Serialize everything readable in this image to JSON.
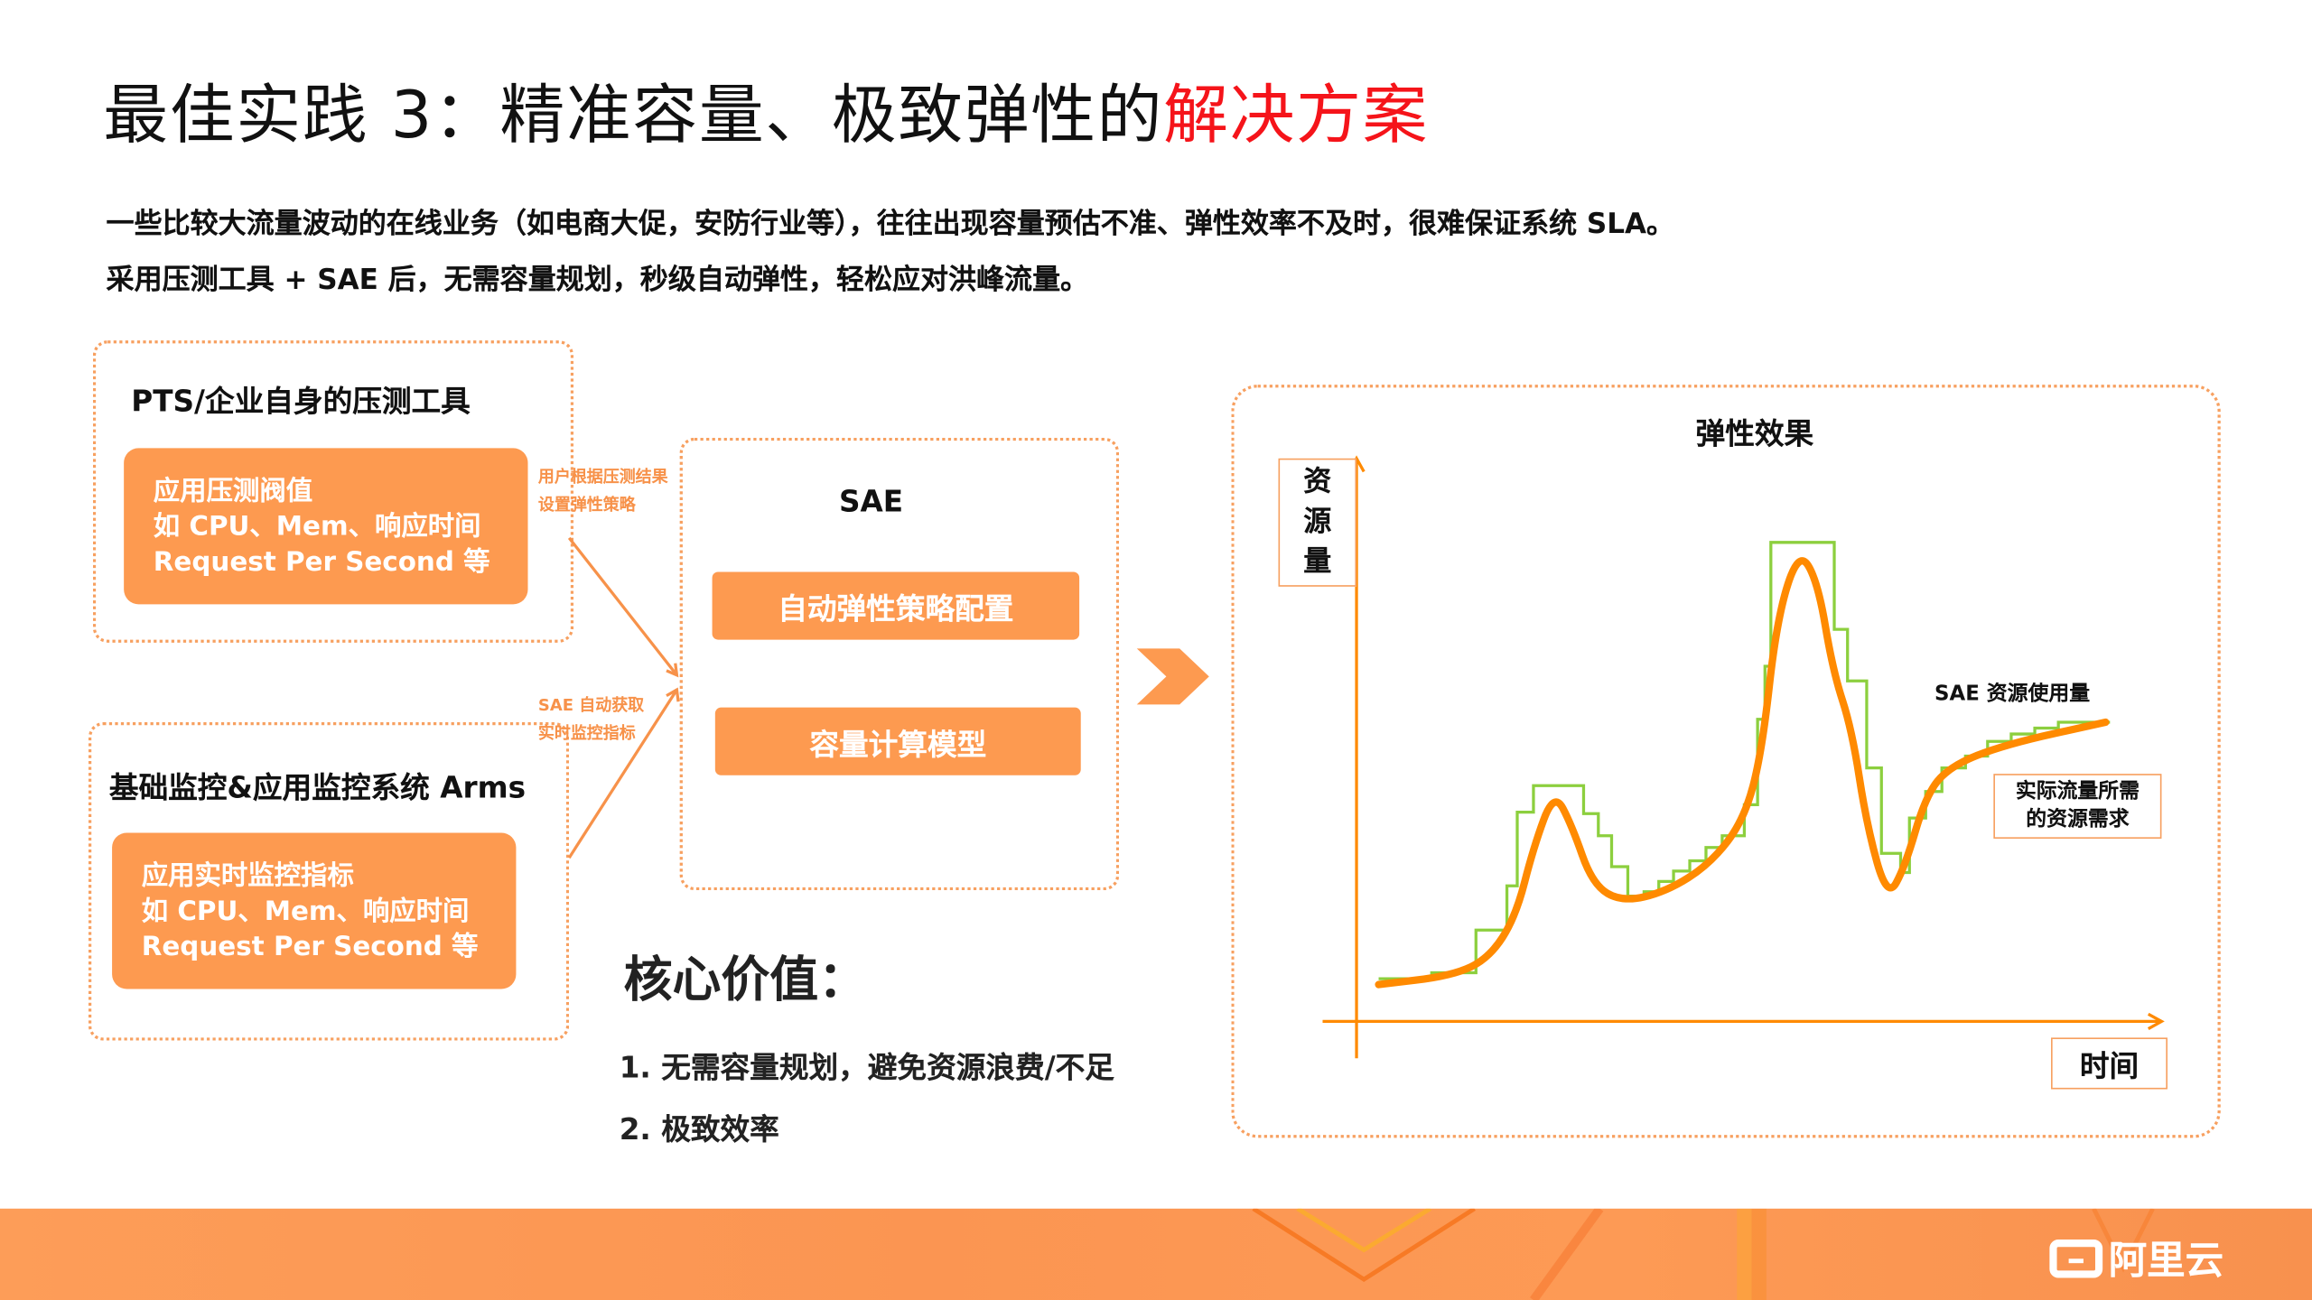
{
  "header": {
    "title_main": "最佳实践 3：精准容量、极致弹性的",
    "title_highlight": "解决方案",
    "highlight_color": "#f5141a"
  },
  "intro": {
    "line1": "一些比较大流量波动的在线业务（如电商大促，安防行业等），往往出现容量预估不准、弹性效率不及时，很难保证系统 SLA。",
    "line2": "采用压测工具 + SAE 后，无需容量规划，秒级自动弹性，轻松应对洪峰流量。"
  },
  "pts_box": {
    "title": "PTS/企业自身的压测工具",
    "lines": [
      "应用压测阀值",
      "如 CPU、Mem、响应时间",
      "Request Per Second 等"
    ]
  },
  "monitor_box": {
    "title": "基础监控&应用监控系统  Arms",
    "lines": [
      "应用实时监控指标",
      "如 CPU、Mem、响应时间",
      "Request Per Second 等"
    ]
  },
  "arrow_labels": {
    "top": [
      "用户根据压测结果",
      "设置弹性策略"
    ],
    "bottom": [
      "SAE 自动获取",
      "实时监控指标"
    ]
  },
  "sae_box": {
    "title": "SAE",
    "buttons": [
      "自动弹性策略配置",
      "容量计算模型"
    ]
  },
  "core_value": {
    "title": "核心价值：",
    "items": [
      "1. 无需容量规划，避免资源浪费/不足",
      "2. 极致效率"
    ]
  },
  "effect_chart": {
    "title": "弹性效果",
    "y_label": [
      "资",
      "源",
      "量"
    ],
    "x_label": "时间",
    "series_labels": {
      "sae_usage": "SAE 资源使用量",
      "demand": [
        "实际流量所需",
        "的资源需求"
      ]
    },
    "colors": {
      "demand": "#ff8a00",
      "sae_usage": "#8ccf3e",
      "axis": "#ff8a00"
    }
  },
  "footer": {
    "logo_text": "阿里云",
    "color": "#fd9a55"
  }
}
